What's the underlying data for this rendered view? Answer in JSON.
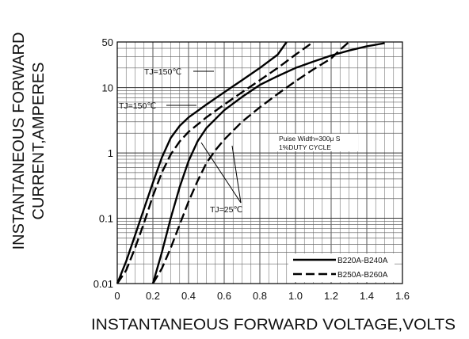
{
  "chart_data": {
    "type": "line",
    "title": "",
    "xlabel": "INSTANTANEOUS FORWARD VOLTAGE,VOLTS",
    "ylabel_lines": [
      "INSTANTANEOUS FORWARD",
      "CURRENT,AMPERES"
    ],
    "x_axis": {
      "range": [
        0,
        1.6
      ],
      "ticks": [
        0,
        0.2,
        0.4,
        0.6,
        0.8,
        1.0,
        1.2,
        1.4,
        1.6
      ],
      "tick_labels": [
        "0",
        "0.2",
        "0.4",
        "0.6",
        "0.8",
        "1.0",
        "1.2",
        "1.4",
        "1.6"
      ]
    },
    "y_axis": {
      "scale": "log",
      "range": [
        0.01,
        50
      ],
      "ticks": [
        0.01,
        0.1,
        1,
        10,
        50
      ],
      "tick_labels": [
        "0.01",
        "0.1",
        "1",
        "10",
        "50"
      ]
    },
    "grid": true,
    "legend": {
      "placement": "bottom-right",
      "entries": [
        {
          "label": "B220A-B240A",
          "style": "solid"
        },
        {
          "label": "B250A-B260A",
          "style": "dashed"
        }
      ]
    },
    "annotations": {
      "tj150_upper": "TJ=150℃",
      "tj150_lower": "TJ=150℃",
      "tj25": "TJ=25℃",
      "pulse_line1": "Puise Width=300μ S",
      "pulse_line2": "1%DUTY CYCLE"
    },
    "series": [
      {
        "group": "B220A-B240A",
        "style": "solid",
        "condition": "TJ=150℃",
        "x": [
          0.0,
          0.05,
          0.1,
          0.15,
          0.2,
          0.25,
          0.3,
          0.35,
          0.4,
          0.5,
          0.6,
          0.7,
          0.8,
          0.9,
          0.95
        ],
        "y": [
          0.01,
          0.022,
          0.055,
          0.14,
          0.35,
          0.85,
          1.7,
          2.6,
          3.5,
          5.5,
          8.5,
          13,
          20,
          32,
          50
        ]
      },
      {
        "group": "B250A-B260A",
        "style": "dashed",
        "condition": "TJ=150℃",
        "x": [
          0.0,
          0.05,
          0.1,
          0.15,
          0.2,
          0.25,
          0.3,
          0.35,
          0.4,
          0.5,
          0.6,
          0.7,
          0.8,
          0.9,
          1.0,
          1.1
        ],
        "y": [
          0.01,
          0.016,
          0.035,
          0.085,
          0.22,
          0.5,
          0.95,
          1.5,
          2.1,
          3.5,
          5.5,
          8.5,
          13,
          20,
          32,
          50
        ]
      },
      {
        "group": "B220A-B240A",
        "style": "solid",
        "condition": "TJ=25℃",
        "x": [
          0.2,
          0.25,
          0.3,
          0.35,
          0.4,
          0.45,
          0.5,
          0.6,
          0.7,
          0.8,
          0.9,
          1.0,
          1.1,
          1.2,
          1.3,
          1.4,
          1.5
        ],
        "y": [
          0.01,
          0.03,
          0.1,
          0.3,
          0.75,
          1.5,
          2.4,
          4.5,
          7.2,
          11,
          15,
          20,
          25,
          31,
          37,
          43,
          48
        ]
      },
      {
        "group": "B250A-B260A",
        "style": "dashed",
        "condition": "TJ=25℃",
        "x": [
          0.2,
          0.25,
          0.3,
          0.35,
          0.4,
          0.45,
          0.5,
          0.55,
          0.6,
          0.7,
          0.8,
          0.9,
          1.0,
          1.1,
          1.2,
          1.25,
          1.3
        ],
        "y": [
          0.01,
          0.017,
          0.035,
          0.08,
          0.18,
          0.37,
          0.7,
          1.1,
          1.6,
          3.0,
          5.0,
          8.0,
          12.5,
          19,
          28,
          38,
          50
        ]
      }
    ]
  }
}
